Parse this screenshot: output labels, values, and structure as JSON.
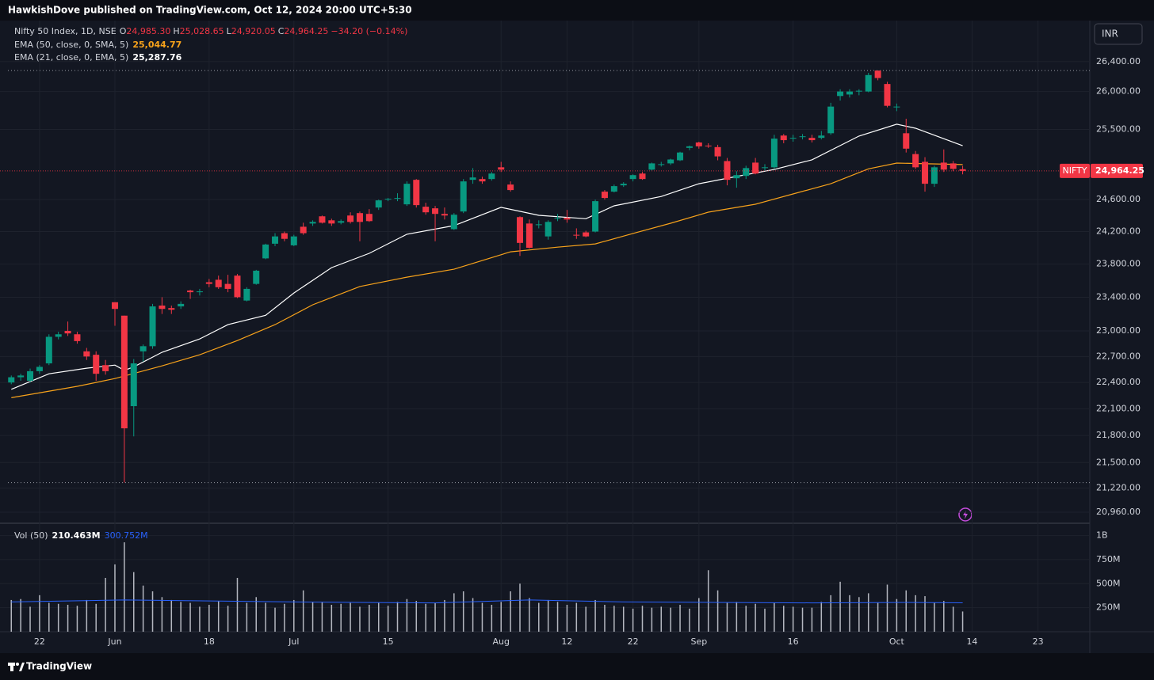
{
  "caption": "HawkishDove published on TradingView.com, Oct 12, 2024 20:00 UTC+5:30",
  "branding": "TradingView",
  "currency_button": "INR",
  "chart_data": {
    "type": "candlestick",
    "log_scale": true,
    "grid": true,
    "up_color": "#089981",
    "down_color": "#f23645",
    "legend": {
      "symbol": "Nifty 50 Index, 1D, NSE",
      "ohlc": [
        {
          "key": "O",
          "value": "24,985.30"
        },
        {
          "key": "H",
          "value": "25,028.65"
        },
        {
          "key": "L",
          "value": "24,920.05"
        },
        {
          "key": "C",
          "value": "24,964.25"
        }
      ],
      "change": "−34.20 (−0.14%)"
    },
    "price_tag": {
      "symbol": "NIFTY",
      "label": "24,964.25"
    },
    "candles": [
      [
        22400,
        22480,
        22380,
        22460
      ],
      [
        22460,
        22500,
        22420,
        22480
      ],
      [
        22420,
        22560,
        22400,
        22530
      ],
      [
        22530,
        22600,
        22500,
        22580
      ],
      [
        22620,
        22960,
        22600,
        22930
      ],
      [
        22930,
        22990,
        22900,
        22960
      ],
      [
        23000,
        23110,
        22940,
        22970
      ],
      [
        22960,
        22990,
        22850,
        22880
      ],
      [
        22760,
        22800,
        22660,
        22700
      ],
      [
        22720,
        22760,
        22420,
        22500
      ],
      [
        22600,
        22660,
        22490,
        22530
      ],
      [
        23340,
        23340,
        23060,
        23260
      ],
      [
        23180,
        23180,
        21280,
        21880
      ],
      [
        22130,
        22670,
        21790,
        22620
      ],
      [
        22760,
        22840,
        22640,
        22820
      ],
      [
        22820,
        23320,
        22790,
        23290
      ],
      [
        23300,
        23400,
        23200,
        23260
      ],
      [
        23270,
        23300,
        23200,
        23250
      ],
      [
        23290,
        23350,
        23260,
        23320
      ],
      [
        23480,
        23490,
        23380,
        23460
      ],
      [
        23460,
        23500,
        23420,
        23470
      ],
      [
        23580,
        23620,
        23520,
        23560
      ],
      [
        23610,
        23660,
        23500,
        23520
      ],
      [
        23560,
        23670,
        23460,
        23500
      ],
      [
        23660,
        23680,
        23390,
        23400
      ],
      [
        23360,
        23520,
        23350,
        23500
      ],
      [
        23560,
        23730,
        23550,
        23720
      ],
      [
        23870,
        24050,
        23860,
        24040
      ],
      [
        24050,
        24180,
        24020,
        24140
      ],
      [
        24180,
        24200,
        24080,
        24110
      ],
      [
        24030,
        24160,
        24020,
        24140
      ],
      [
        24260,
        24310,
        24160,
        24180
      ],
      [
        24300,
        24340,
        24270,
        24320
      ],
      [
        24390,
        24400,
        24300,
        24310
      ],
      [
        24340,
        24360,
        24270,
        24300
      ],
      [
        24310,
        24350,
        24290,
        24330
      ],
      [
        24400,
        24440,
        24300,
        24320
      ],
      [
        24430,
        24450,
        24080,
        24320
      ],
      [
        24420,
        24480,
        24320,
        24330
      ],
      [
        24500,
        24600,
        24470,
        24590
      ],
      [
        24600,
        24620,
        24580,
        24610
      ],
      [
        24610,
        24680,
        24580,
        24620
      ],
      [
        24540,
        24830,
        24520,
        24800
      ],
      [
        24850,
        24860,
        24500,
        24530
      ],
      [
        24510,
        24560,
        24410,
        24440
      ],
      [
        24490,
        24520,
        24080,
        24420
      ],
      [
        24420,
        24500,
        24350,
        24400
      ],
      [
        24230,
        24430,
        24220,
        24410
      ],
      [
        24450,
        24860,
        24430,
        24830
      ],
      [
        24850,
        25000,
        24800,
        24880
      ],
      [
        24860,
        24890,
        24800,
        24830
      ],
      [
        24860,
        24950,
        24840,
        24930
      ],
      [
        25010,
        25080,
        24950,
        24980
      ],
      [
        24790,
        24830,
        24700,
        24720
      ],
      [
        24380,
        24390,
        23900,
        24060
      ],
      [
        24300,
        24350,
        23990,
        24000
      ],
      [
        24280,
        24340,
        24240,
        24290
      ],
      [
        24140,
        24340,
        24100,
        24320
      ],
      [
        24360,
        24420,
        24330,
        24370
      ],
      [
        24370,
        24470,
        24310,
        24350
      ],
      [
        24160,
        24240,
        24110,
        24150
      ],
      [
        24190,
        24210,
        24130,
        24140
      ],
      [
        24200,
        24600,
        24190,
        24580
      ],
      [
        24700,
        24720,
        24600,
        24620
      ],
      [
        24700,
        24790,
        24690,
        24770
      ],
      [
        24780,
        24820,
        24760,
        24800
      ],
      [
        24860,
        24920,
        24830,
        24910
      ],
      [
        24930,
        24950,
        24850,
        24860
      ],
      [
        24980,
        25070,
        24970,
        25060
      ],
      [
        25040,
        25080,
        25020,
        25050
      ],
      [
        25060,
        25120,
        25040,
        25110
      ],
      [
        25100,
        25210,
        25090,
        25200
      ],
      [
        25260,
        25290,
        25230,
        25280
      ],
      [
        25330,
        25340,
        25250,
        25280
      ],
      [
        25290,
        25320,
        25260,
        25280
      ],
      [
        25270,
        25300,
        25100,
        25150
      ],
      [
        25090,
        25130,
        24780,
        24850
      ],
      [
        24870,
        24960,
        24750,
        24910
      ],
      [
        24900,
        25030,
        24860,
        25000
      ],
      [
        25070,
        25130,
        24920,
        24930
      ],
      [
        25000,
        25050,
        24970,
        25010
      ],
      [
        25010,
        25430,
        24990,
        25380
      ],
      [
        25420,
        25440,
        25320,
        25360
      ],
      [
        25390,
        25430,
        25340,
        25390
      ],
      [
        25400,
        25440,
        25370,
        25410
      ],
      [
        25390,
        25430,
        25330,
        25360
      ],
      [
        25390,
        25480,
        25370,
        25420
      ],
      [
        25450,
        25850,
        25430,
        25800
      ],
      [
        25940,
        26030,
        25880,
        26000
      ],
      [
        25960,
        26030,
        25920,
        26000
      ],
      [
        26000,
        26030,
        25950,
        26010
      ],
      [
        26000,
        26250,
        25990,
        26220
      ],
      [
        26280,
        26280,
        26150,
        26180
      ],
      [
        26100,
        26130,
        25790,
        25810
      ],
      [
        25790,
        25840,
        25740,
        25800
      ],
      [
        25450,
        25640,
        25200,
        25250
      ],
      [
        25180,
        25220,
        24990,
        25010
      ],
      [
        25080,
        25140,
        24700,
        24800
      ],
      [
        24800,
        25030,
        24760,
        25010
      ],
      [
        25070,
        25240,
        24950,
        24980
      ],
      [
        25060,
        25090,
        24960,
        24990
      ],
      [
        24985.3,
        25028.65,
        24920.05,
        24964.25
      ]
    ],
    "series": [
      {
        "name": "EMA (50, close, 0, SMA, 5)",
        "value_label": "25,044.77",
        "color": "#f7a21b",
        "x": [
          0,
          7,
          11,
          16,
          20,
          24,
          28,
          32,
          37,
          42,
          47,
          53,
          58,
          62,
          66,
          70,
          74,
          79,
          83,
          87,
          91,
          94,
          101
        ],
        "values": [
          22226,
          22356,
          22445,
          22591,
          22720,
          22886,
          23073,
          23309,
          23529,
          23642,
          23738,
          23950,
          24008,
          24048,
          24177,
          24304,
          24442,
          24541,
          24671,
          24800,
          24990,
          25064,
          25044.77
        ]
      },
      {
        "name": "EMA (21, close, 0, EMA, 5)",
        "value_label": "25,287.76",
        "color": "#ffffff",
        "x": [
          0,
          4,
          8,
          11,
          12,
          13,
          16,
          20,
          23,
          27,
          30,
          34,
          38,
          42,
          47,
          52,
          56,
          61,
          64,
          69,
          73,
          77,
          81,
          85,
          90,
          94,
          96,
          101
        ],
        "values": [
          22322,
          22500,
          22565,
          22600,
          22540,
          22580,
          22749,
          22905,
          23073,
          23184,
          23451,
          23757,
          23932,
          24167,
          24274,
          24502,
          24402,
          24360,
          24521,
          24639,
          24800,
          24893,
          24982,
          25106,
          25413,
          25568,
          25515,
          25287.76
        ]
      }
    ],
    "ylim": [
      20850,
      26940
    ],
    "yticks": [
      {
        "value": 26400,
        "label": "26,400.00"
      },
      {
        "value": 26000,
        "label": "26,000.00"
      },
      {
        "value": 25500,
        "label": "25,500.00"
      },
      {
        "value": 24600,
        "label": "24,600.00"
      },
      {
        "value": 24200,
        "label": "24,200.00"
      },
      {
        "value": 23800,
        "label": "23,800.00"
      },
      {
        "value": 23400,
        "label": "23,400.00"
      },
      {
        "value": 23000,
        "label": "23,000.00"
      },
      {
        "value": 22700,
        "label": "22,700.00"
      },
      {
        "value": 22400,
        "label": "22,400.00"
      },
      {
        "value": 22100,
        "label": "22,100.00"
      },
      {
        "value": 21800,
        "label": "21,800.00"
      },
      {
        "value": 21500,
        "label": "21,500.00"
      },
      {
        "value": 21220,
        "label": "21,220.00"
      },
      {
        "value": 20960,
        "label": "20,960.00"
      }
    ],
    "xlim": [
      -1.2,
      114.5
    ],
    "xticks": [
      {
        "value": 3,
        "label": "22"
      },
      {
        "value": 11,
        "label": "Jun"
      },
      {
        "value": 21,
        "label": "18"
      },
      {
        "value": 30,
        "label": "Jul"
      },
      {
        "value": 40,
        "label": "15"
      },
      {
        "value": 52,
        "label": "Aug"
      },
      {
        "value": 59,
        "label": "12"
      },
      {
        "value": 66,
        "label": "22"
      },
      {
        "value": 73,
        "label": "Sep"
      },
      {
        "value": 83,
        "label": "16"
      },
      {
        "value": 94,
        "label": "Oct"
      },
      {
        "value": 102,
        "label": "14"
      },
      {
        "value": 109,
        "label": "23"
      }
    ],
    "volume": {
      "name": "Vol (50)",
      "value_label": "210.463M",
      "color": "#d1d4dc",
      "values": [
        330,
        340,
        260,
        380,
        300,
        290,
        280,
        270,
        330,
        290,
        560,
        700,
        930,
        620,
        480,
        420,
        360,
        330,
        310,
        300,
        260,
        280,
        320,
        270,
        560,
        300,
        360,
        300,
        250,
        290,
        330,
        430,
        310,
        310,
        280,
        290,
        300,
        260,
        280,
        300,
        270,
        310,
        340,
        320,
        290,
        300,
        330,
        400,
        420,
        350,
        300,
        280,
        310,
        420,
        500,
        350,
        300,
        330,
        310,
        280,
        300,
        260,
        330,
        280,
        270,
        260,
        240,
        270,
        250,
        260,
        250,
        280,
        240,
        350,
        640,
        430,
        300,
        310,
        270,
        290,
        240,
        300,
        270,
        260,
        250,
        250,
        310,
        380,
        520,
        380,
        360,
        400,
        300,
        490,
        340,
        430,
        380,
        370,
        300,
        320,
        260,
        210.463
      ],
      "ma": {
        "value_label": "300.752M",
        "color": "#2962ff",
        "x": [
          0,
          12,
          30,
          45,
          55,
          65,
          75,
          85,
          95,
          101
        ],
        "values": [
          310,
          330,
          310,
          300,
          330,
          310,
          305,
          300,
          305,
          300.752
        ]
      },
      "ylim": [
        0,
        1120
      ],
      "yticks": [
        {
          "value": 1000,
          "label": "1B"
        },
        {
          "value": 750,
          "label": "750M"
        },
        {
          "value": 500,
          "label": "500M"
        },
        {
          "value": 250,
          "label": "250M"
        }
      ]
    }
  }
}
